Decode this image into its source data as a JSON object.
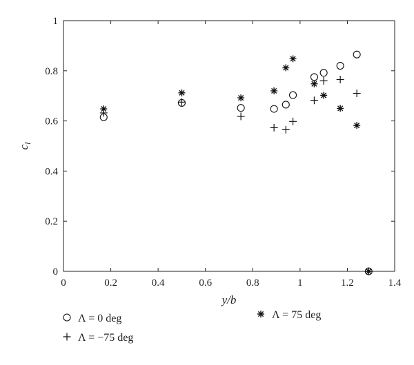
{
  "chart_data": {
    "type": "scatter",
    "xlabel": "y/b",
    "ylabel": "c",
    "ylabel_sub": "l",
    "xlim": [
      0,
      1.4
    ],
    "ylim": [
      0,
      1
    ],
    "xticks": [
      "0",
      "0.2",
      "0.4",
      "0.6",
      "0.8",
      "1",
      "1.2",
      "1.4"
    ],
    "yticks": [
      "0",
      "0.2",
      "0.4",
      "0.6",
      "0.8",
      "1"
    ],
    "grid": false,
    "legend_placement": "bottom",
    "series": [
      {
        "name": "Λ = 0 deg",
        "marker": "circle",
        "points": [
          [
            0.17,
            0.615
          ],
          [
            0.5,
            0.672
          ],
          [
            0.75,
            0.652
          ],
          [
            0.89,
            0.648
          ],
          [
            0.94,
            0.665
          ],
          [
            0.97,
            0.703
          ],
          [
            1.06,
            0.775
          ],
          [
            1.1,
            0.792
          ],
          [
            1.17,
            0.82
          ],
          [
            1.24,
            0.865
          ],
          [
            1.29,
            0.0
          ]
        ]
      },
      {
        "name": "Λ = −75 deg",
        "marker": "plus",
        "points": [
          [
            0.17,
            0.632
          ],
          [
            0.5,
            0.675
          ],
          [
            0.75,
            0.618
          ],
          [
            0.89,
            0.573
          ],
          [
            0.94,
            0.565
          ],
          [
            0.97,
            0.598
          ],
          [
            1.06,
            0.682
          ],
          [
            1.1,
            0.76
          ],
          [
            1.17,
            0.765
          ],
          [
            1.24,
            0.71
          ],
          [
            1.29,
            0.0
          ]
        ]
      },
      {
        "name": "Λ = 75 deg",
        "marker": "asterisk",
        "points": [
          [
            0.17,
            0.648
          ],
          [
            0.5,
            0.712
          ],
          [
            0.75,
            0.692
          ],
          [
            0.89,
            0.72
          ],
          [
            0.94,
            0.812
          ],
          [
            0.97,
            0.848
          ],
          [
            1.06,
            0.748
          ],
          [
            1.1,
            0.702
          ],
          [
            1.17,
            0.65
          ],
          [
            1.24,
            0.582
          ],
          [
            1.29,
            0.0
          ]
        ]
      }
    ]
  }
}
